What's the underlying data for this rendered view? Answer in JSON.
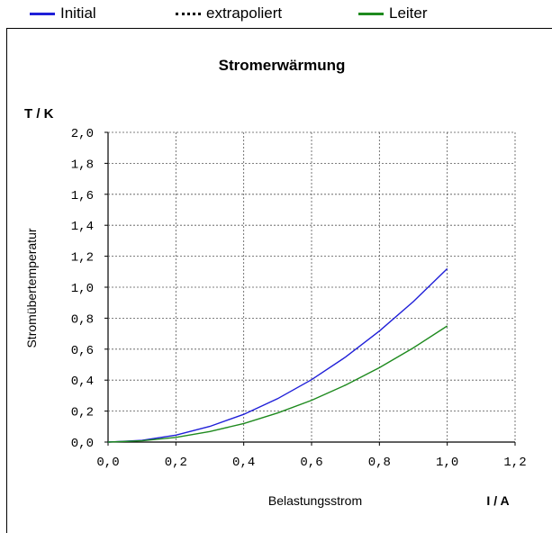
{
  "legend": [
    {
      "label": "Initial",
      "color": "#1f1fd8",
      "style": "solid"
    },
    {
      "label": "extrapoliert",
      "color": "#000000",
      "style": "dotted"
    },
    {
      "label": "Leiter",
      "color": "#1e8a1e",
      "style": "solid"
    }
  ],
  "chart_data": {
    "type": "line",
    "title": "Stromerwärmung",
    "xlabel": "Belastungsstrom",
    "xunit": "I / A",
    "ylabel": "Stromübertemperatur",
    "yunit": "T / K",
    "xlim": [
      0,
      1.2
    ],
    "ylim": [
      0,
      2.0
    ],
    "xticks": [
      "0,0",
      "0,2",
      "0,4",
      "0,6",
      "0,8",
      "1,0",
      "1,2"
    ],
    "yticks": [
      "0,0",
      "0,2",
      "0,4",
      "0,6",
      "0,8",
      "1,0",
      "1,2",
      "1,4",
      "1,6",
      "1,8",
      "2,0"
    ],
    "grid": true,
    "series": [
      {
        "name": "Initial",
        "color": "#1f1fd8",
        "x": [
          0,
          0.1,
          0.2,
          0.3,
          0.4,
          0.5,
          0.6,
          0.7,
          0.8,
          0.9,
          1.0
        ],
        "y": [
          0,
          0.011,
          0.045,
          0.101,
          0.179,
          0.28,
          0.403,
          0.549,
          0.717,
          0.907,
          1.12
        ]
      },
      {
        "name": "Leiter",
        "color": "#1e8a1e",
        "x": [
          0,
          0.1,
          0.2,
          0.3,
          0.4,
          0.5,
          0.6,
          0.7,
          0.8,
          0.9,
          1.0
        ],
        "y": [
          0,
          0.008,
          0.03,
          0.068,
          0.12,
          0.188,
          0.27,
          0.368,
          0.48,
          0.608,
          0.75
        ]
      }
    ]
  }
}
